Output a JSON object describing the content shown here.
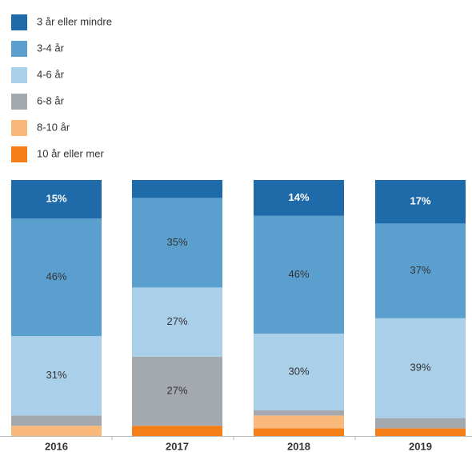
{
  "chart_data": {
    "type": "stacked_bar",
    "categories": [
      "2016",
      "2017",
      "2018",
      "2019"
    ],
    "series": [
      {
        "name": "10 år eller mer",
        "color": "#f57f17",
        "values": [
          0,
          4,
          3,
          3
        ],
        "value_labels": [
          null,
          null,
          null,
          null
        ]
      },
      {
        "name": "8-10 år",
        "color": "#f9b97a",
        "values": [
          4,
          0,
          5,
          0
        ],
        "value_labels": [
          null,
          null,
          null,
          null
        ]
      },
      {
        "name": "6-8 år",
        "color": "#a4a9b0",
        "values": [
          4,
          27,
          2,
          4
        ],
        "value_labels": [
          null,
          "27%",
          null,
          null
        ]
      },
      {
        "name": "4-6 år",
        "color": "#a9cfe9",
        "values": [
          31,
          27,
          30,
          39
        ],
        "value_labels": [
          "31%",
          "27%",
          "30%",
          "39%"
        ]
      },
      {
        "name": "3-4 år",
        "color": "#5b9fcf",
        "values": [
          46,
          35,
          46,
          37
        ],
        "value_labels": [
          "46%",
          "35%",
          "46%",
          "37%"
        ]
      },
      {
        "name": "3 år eller mindre",
        "color": "#1f6aa8",
        "values": [
          15,
          7,
          14,
          17
        ],
        "value_labels": [
          "15%",
          null,
          "14%",
          "17%"
        ]
      }
    ]
  }
}
